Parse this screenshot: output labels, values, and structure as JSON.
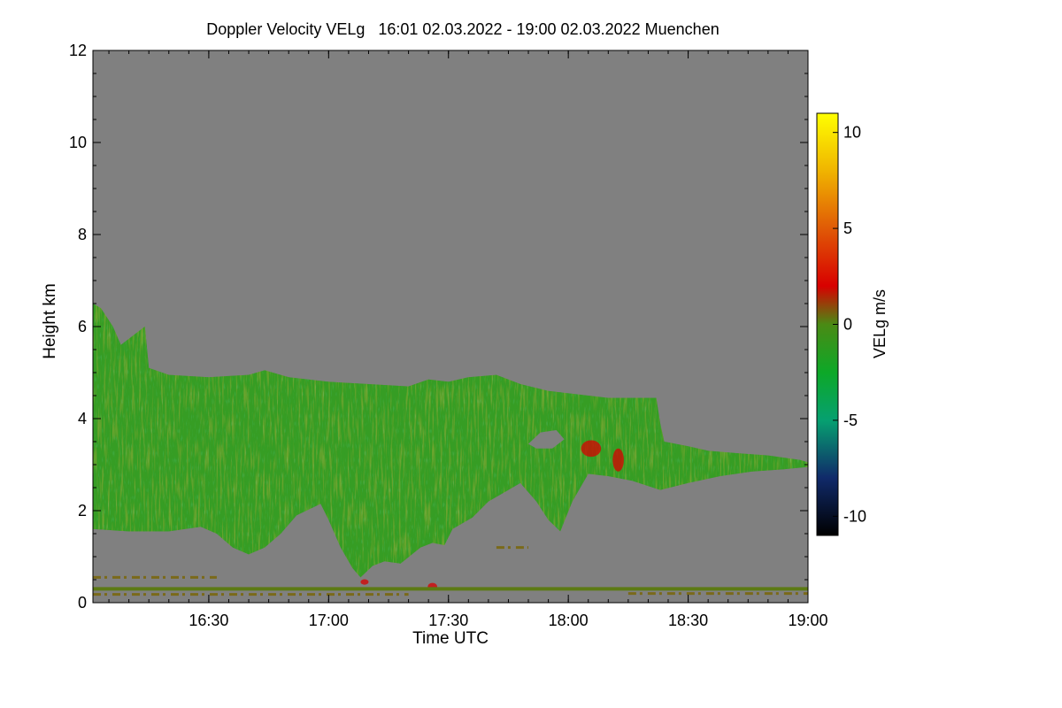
{
  "chart_data": {
    "type": "heatmap",
    "title": "Doppler Velocity VELg   16:01 02.03.2022 - 19:00 02.03.2022 Muenchen",
    "xlabel": "Time UTC",
    "ylabel": "Height km",
    "x_range_min": [
      961,
      1140
    ],
    "x_ticks": [
      {
        "min": 990,
        "label": "16:30"
      },
      {
        "min": 1020,
        "label": "17:00"
      },
      {
        "min": 1050,
        "label": "17:30"
      },
      {
        "min": 1080,
        "label": "18:00"
      },
      {
        "min": 1110,
        "label": "18:30"
      },
      {
        "min": 1140,
        "label": "19:00"
      }
    ],
    "ylim": [
      0,
      12
    ],
    "y_ticks": [
      0,
      2,
      4,
      6,
      8,
      10,
      12
    ],
    "colorbar": {
      "label": "VELg m/s",
      "range": [
        -11,
        11
      ],
      "ticks": [
        {
          "value": 10,
          "label": "10"
        },
        {
          "value": 5,
          "label": "5"
        },
        {
          "value": 0,
          "label": "0"
        },
        {
          "value": -5,
          "label": "-5"
        },
        {
          "value": -10,
          "label": "-10"
        }
      ],
      "stops": [
        {
          "value": -11,
          "color": "#000000"
        },
        {
          "value": -8,
          "color": "#102a6a"
        },
        {
          "value": -5,
          "color": "#06a070"
        },
        {
          "value": -2.5,
          "color": "#0da828"
        },
        {
          "value": 0,
          "color": "#4a8a14"
        },
        {
          "value": 2,
          "color": "#d80000"
        },
        {
          "value": 5,
          "color": "#e05a06"
        },
        {
          "value": 8,
          "color": "#f0b400"
        },
        {
          "value": 11,
          "color": "#ffff00"
        }
      ]
    },
    "colors": {
      "background": "#808080",
      "echo_main": "#3f9a22",
      "echo_secondary": "#2ea025",
      "echo_reddish": "#7a6a1a",
      "ground_line": "#5c7a14"
    },
    "cloud_region": {
      "top": [
        [
          961,
          6.5
        ],
        [
          963,
          6.4
        ],
        [
          966,
          6.0
        ],
        [
          968,
          5.6
        ],
        [
          971,
          5.8
        ],
        [
          974,
          6.0
        ],
        [
          975,
          5.1
        ],
        [
          980,
          4.95
        ],
        [
          990,
          4.9
        ],
        [
          1000,
          4.95
        ],
        [
          1004,
          5.05
        ],
        [
          1010,
          4.9
        ],
        [
          1020,
          4.8
        ],
        [
          1030,
          4.75
        ],
        [
          1040,
          4.7
        ],
        [
          1045,
          4.85
        ],
        [
          1050,
          4.8
        ],
        [
          1055,
          4.9
        ],
        [
          1062,
          4.95
        ],
        [
          1068,
          4.75
        ],
        [
          1075,
          4.6
        ],
        [
          1080,
          4.55
        ],
        [
          1090,
          4.45
        ],
        [
          1102,
          4.45
        ],
        [
          1103,
          3.9
        ],
        [
          1104,
          3.5
        ],
        [
          1110,
          3.4
        ],
        [
          1115,
          3.3
        ],
        [
          1122,
          3.25
        ],
        [
          1130,
          3.2
        ],
        [
          1138,
          3.1
        ],
        [
          1140,
          3.05
        ]
      ],
      "base": [
        [
          961,
          1.6
        ],
        [
          970,
          1.55
        ],
        [
          980,
          1.55
        ],
        [
          988,
          1.65
        ],
        [
          992,
          1.5
        ],
        [
          996,
          1.2
        ],
        [
          1000,
          1.05
        ],
        [
          1004,
          1.2
        ],
        [
          1008,
          1.5
        ],
        [
          1012,
          1.9
        ],
        [
          1018,
          2.15
        ],
        [
          1020,
          1.8
        ],
        [
          1023,
          1.2
        ],
        [
          1026,
          0.75
        ],
        [
          1028,
          0.55
        ],
        [
          1031,
          0.8
        ],
        [
          1034,
          0.9
        ],
        [
          1038,
          0.85
        ],
        [
          1043,
          1.2
        ],
        [
          1046,
          1.3
        ],
        [
          1049,
          1.25
        ],
        [
          1051,
          1.6
        ],
        [
          1056,
          1.85
        ],
        [
          1060,
          2.2
        ],
        [
          1064,
          2.4
        ],
        [
          1068,
          2.6
        ],
        [
          1072,
          2.2
        ],
        [
          1075,
          1.8
        ],
        [
          1078,
          1.55
        ],
        [
          1081,
          2.2
        ],
        [
          1085,
          2.8
        ],
        [
          1090,
          2.75
        ],
        [
          1096,
          2.65
        ],
        [
          1103,
          2.45
        ],
        [
          1110,
          2.6
        ],
        [
          1118,
          2.75
        ],
        [
          1126,
          2.85
        ],
        [
          1134,
          2.9
        ],
        [
          1140,
          2.95
        ]
      ],
      "gap": [
        [
          1070,
          3.45
        ],
        [
          1073,
          3.7
        ],
        [
          1077,
          3.75
        ],
        [
          1079,
          3.55
        ],
        [
          1076,
          3.35
        ],
        [
          1072,
          3.35
        ]
      ]
    },
    "reddish_patches": [
      {
        "t": 1085.7,
        "h": 3.35,
        "rx": 2.5,
        "ry": 0.18
      },
      {
        "t": 1092.5,
        "h": 3.1,
        "rx": 1.4,
        "ry": 0.25
      },
      {
        "t": 1029,
        "h": 0.45,
        "rx": 1,
        "ry": 0.06
      },
      {
        "t": 1046,
        "h": 0.35,
        "rx": 1.2,
        "ry": 0.08
      }
    ],
    "low_bands": [
      {
        "h": 0.55,
        "from": 961,
        "to": 992,
        "dashed": true
      },
      {
        "h": 0.3,
        "from": 961,
        "to": 1140,
        "dashed": false
      },
      {
        "h": 0.18,
        "from": 961,
        "to": 1040,
        "dashed": true
      },
      {
        "h": 0.2,
        "from": 1095,
        "to": 1140,
        "dashed": true
      },
      {
        "h": 1.2,
        "from": 1062,
        "to": 1070,
        "dashed": true
      }
    ]
  }
}
